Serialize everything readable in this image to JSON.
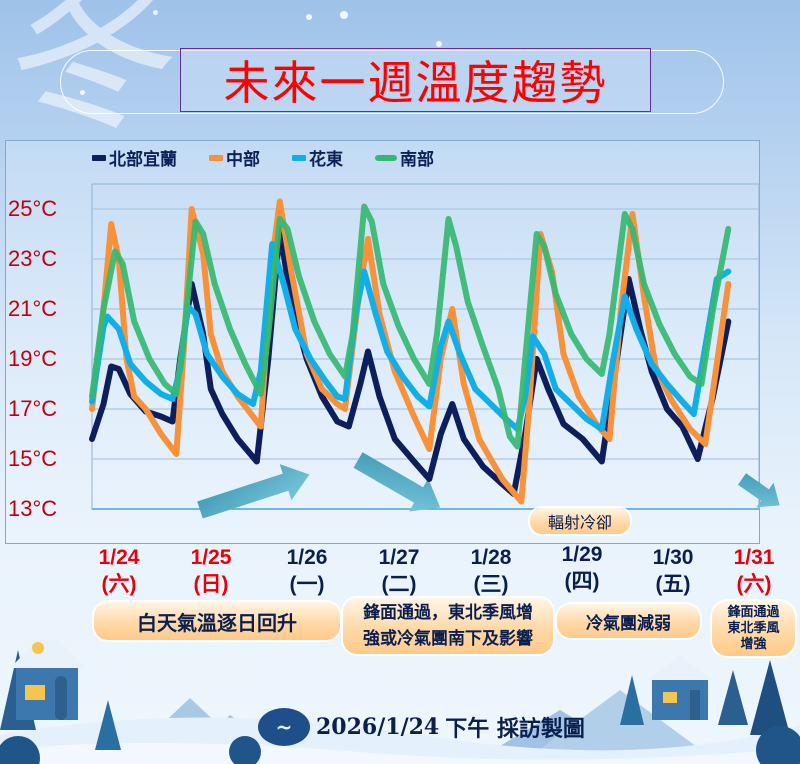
{
  "title": "未來一週溫度趨勢",
  "decorative_glyph": "冬",
  "legend": [
    {
      "label": "北部宜蘭",
      "color": "#0c1f5c"
    },
    {
      "label": "中部",
      "color": "#f7923a"
    },
    {
      "label": "花東",
      "color": "#12aeea"
    },
    {
      "label": "南部",
      "color": "#35b872"
    }
  ],
  "y_ticks": [
    "25°C",
    "23°C",
    "21°C",
    "19°C",
    "17°C",
    "15°C",
    "13°C"
  ],
  "days": [
    {
      "date": "1/24",
      "weekday": "(六)",
      "color": "#e8000b"
    },
    {
      "date": "1/25",
      "weekday": "(日)",
      "color": "#e8000b"
    },
    {
      "date": "1/26",
      "weekday": "(一)",
      "color": "#0b1f4f"
    },
    {
      "date": "1/27",
      "weekday": "(二)",
      "color": "#0b1f4f"
    },
    {
      "date": "1/28",
      "weekday": "(三)",
      "color": "#0b1f4f"
    },
    {
      "date": "1/29",
      "weekday": "(四)",
      "color": "#0b1f4f"
    },
    {
      "date": "1/30",
      "weekday": "(五)",
      "color": "#0b1f4f"
    },
    {
      "date": "1/31",
      "weekday": "(六)",
      "color": "#e8000b"
    }
  ],
  "notes": [
    {
      "text": "白天氣溫逐日回升"
    },
    {
      "text_line1": "鋒面通過，東北季風增",
      "text_line2": "強或冷氣團南下及影響"
    },
    {
      "text": "冷氣團減弱"
    },
    {
      "text_line1": "鋒面通過",
      "text_line2": "東北季風",
      "text_line3": "增強"
    }
  ],
  "annotation": "輻射冷卻",
  "footer": {
    "date": "2026/1/24",
    "text": "下午 採訪製圖"
  },
  "chart_data": {
    "type": "line",
    "title": "未來一週溫度趨勢",
    "xlabel": "",
    "ylabel": "",
    "ylim": [
      13,
      25.5
    ],
    "y_ticks": [
      25,
      23,
      21,
      19,
      17,
      15,
      13
    ],
    "x_unit": "hours since 1/24 00:00",
    "xlim": [
      0,
      174
    ],
    "categories": [
      "1/24 (六)",
      "1/25 (日)",
      "1/26 (一)",
      "1/27 (二)",
      "1/28 (三)",
      "1/29 (四)",
      "1/30 (五)",
      "1/31 (六)"
    ],
    "grid": true,
    "legend_position": "top",
    "series": [
      {
        "name": "北部宜蘭",
        "color": "#0c1f5c",
        "points": [
          [
            0,
            15.8
          ],
          [
            3,
            17.2
          ],
          [
            5,
            18.7
          ],
          [
            7,
            18.6
          ],
          [
            10,
            17.6
          ],
          [
            14,
            16.9
          ],
          [
            18,
            16.7
          ],
          [
            21,
            16.5
          ],
          [
            23,
            19
          ],
          [
            26,
            22.0
          ],
          [
            29,
            20
          ],
          [
            31,
            17.8
          ],
          [
            34,
            16.8
          ],
          [
            38,
            15.8
          ],
          [
            43,
            14.9
          ],
          [
            46,
            19
          ],
          [
            49,
            24.2
          ],
          [
            52,
            21.2
          ],
          [
            56,
            19
          ],
          [
            60,
            17.5
          ],
          [
            64,
            16.5
          ],
          [
            67,
            16.3
          ],
          [
            70,
            18
          ],
          [
            72,
            19.3
          ],
          [
            75,
            17.5
          ],
          [
            79,
            15.8
          ],
          [
            84,
            14.9
          ],
          [
            88,
            14.2
          ],
          [
            91,
            16
          ],
          [
            94,
            17.2
          ],
          [
            97,
            15.8
          ],
          [
            102,
            14.7
          ],
          [
            107,
            14.0
          ],
          [
            110,
            13.6
          ],
          [
            113,
            16
          ],
          [
            116,
            19.0
          ],
          [
            119,
            17.8
          ],
          [
            123,
            16.4
          ],
          [
            128,
            15.8
          ],
          [
            133,
            14.9
          ],
          [
            136,
            18
          ],
          [
            140,
            22.2
          ],
          [
            143,
            20.2
          ],
          [
            146,
            18.5
          ],
          [
            150,
            17.0
          ],
          [
            154,
            16.3
          ],
          [
            158,
            15.0
          ],
          [
            162,
            17.5
          ],
          [
            166,
            20.5
          ]
        ]
      },
      {
        "name": "中部",
        "color": "#f7923a",
        "points": [
          [
            0,
            17.0
          ],
          [
            3,
            21
          ],
          [
            5,
            24.4
          ],
          [
            7,
            23
          ],
          [
            9,
            19
          ],
          [
            11,
            17.5
          ],
          [
            14,
            17.0
          ],
          [
            18,
            16.0
          ],
          [
            22,
            15.2
          ],
          [
            24,
            19.5
          ],
          [
            26,
            25.0
          ],
          [
            29,
            23.2
          ],
          [
            31,
            20
          ],
          [
            34,
            18.5
          ],
          [
            38,
            17.5
          ],
          [
            42,
            16.7
          ],
          [
            44,
            16.3
          ],
          [
            47,
            23
          ],
          [
            49,
            25.3
          ],
          [
            52,
            22.5
          ],
          [
            56,
            19.2
          ],
          [
            60,
            17.8
          ],
          [
            64,
            17.2
          ],
          [
            66,
            17.0
          ],
          [
            70,
            22
          ],
          [
            72,
            23.8
          ],
          [
            75,
            20.8
          ],
          [
            79,
            18.5
          ],
          [
            84,
            16.7
          ],
          [
            88,
            15.4
          ],
          [
            91,
            19
          ],
          [
            94,
            21.0
          ],
          [
            97,
            18
          ],
          [
            101,
            15.8
          ],
          [
            107,
            14.2
          ],
          [
            112,
            13.3
          ],
          [
            114,
            17
          ],
          [
            117,
            24.0
          ],
          [
            120,
            22.5
          ],
          [
            123,
            19.2
          ],
          [
            127,
            17.5
          ],
          [
            132,
            16.3
          ],
          [
            135,
            15.8
          ],
          [
            138,
            21
          ],
          [
            141,
            24.8
          ],
          [
            144,
            21.5
          ],
          [
            147,
            18.7
          ],
          [
            151,
            17.4
          ],
          [
            156,
            16.2
          ],
          [
            160,
            15.6
          ],
          [
            163,
            18.8
          ],
          [
            166,
            22.0
          ]
        ]
      },
      {
        "name": "花東",
        "color": "#12aeea",
        "points": [
          [
            0,
            17.3
          ],
          [
            3,
            20.3
          ],
          [
            4,
            20.7
          ],
          [
            7,
            20.2
          ],
          [
            10,
            18.8
          ],
          [
            14,
            18.1
          ],
          [
            18,
            17.6
          ],
          [
            21,
            17.4
          ],
          [
            23,
            18.6
          ],
          [
            25,
            21.1
          ],
          [
            27,
            20.8
          ],
          [
            30,
            19.2
          ],
          [
            34,
            18.3
          ],
          [
            38,
            17.6
          ],
          [
            42,
            17.2
          ],
          [
            44,
            18.5
          ],
          [
            47,
            23.6
          ],
          [
            50,
            22.0
          ],
          [
            53,
            20.2
          ],
          [
            57,
            19.0
          ],
          [
            61,
            18.1
          ],
          [
            64,
            17.5
          ],
          [
            66,
            17.4
          ],
          [
            69,
            21
          ],
          [
            71,
            22.5
          ],
          [
            74,
            20.8
          ],
          [
            77,
            19.3
          ],
          [
            81,
            18.3
          ],
          [
            85,
            17.5
          ],
          [
            88,
            17.1
          ],
          [
            91,
            19.5
          ],
          [
            93,
            20.5
          ],
          [
            96,
            19.2
          ],
          [
            100,
            17.8
          ],
          [
            104,
            17.2
          ],
          [
            108,
            16.6
          ],
          [
            111,
            16.2
          ],
          [
            113,
            17.5
          ],
          [
            115,
            19.9
          ],
          [
            118,
            19.2
          ],
          [
            121,
            17.8
          ],
          [
            125,
            17.2
          ],
          [
            129,
            16.6
          ],
          [
            133,
            16.2
          ],
          [
            136,
            19
          ],
          [
            139,
            21.5
          ],
          [
            142,
            20.2
          ],
          [
            146,
            18.8
          ],
          [
            150,
            18.0
          ],
          [
            154,
            17.3
          ],
          [
            157,
            16.8
          ],
          [
            160,
            19.5
          ],
          [
            163,
            22.2
          ],
          [
            166,
            22.5
          ]
        ]
      },
      {
        "name": "南部",
        "color": "#35b872",
        "points": [
          [
            0,
            17.5
          ],
          [
            3,
            21
          ],
          [
            6,
            23.3
          ],
          [
            8,
            22.8
          ],
          [
            11,
            20.5
          ],
          [
            15,
            19.0
          ],
          [
            19,
            18.0
          ],
          [
            22,
            17.6
          ],
          [
            24,
            20
          ],
          [
            27,
            24.5
          ],
          [
            29,
            24.0
          ],
          [
            32,
            22.0
          ],
          [
            36,
            20.2
          ],
          [
            40,
            18.8
          ],
          [
            44,
            17.6
          ],
          [
            46,
            20
          ],
          [
            49,
            24.6
          ],
          [
            51,
            24.2
          ],
          [
            54,
            22.3
          ],
          [
            58,
            20.5
          ],
          [
            62,
            19.2
          ],
          [
            66,
            18.3
          ],
          [
            68,
            20
          ],
          [
            71,
            25.1
          ],
          [
            73,
            24.5
          ],
          [
            76,
            22
          ],
          [
            80,
            20.3
          ],
          [
            84,
            19.0
          ],
          [
            88,
            18.0
          ],
          [
            90,
            20
          ],
          [
            93,
            24.6
          ],
          [
            95,
            23.5
          ],
          [
            98,
            21.3
          ],
          [
            102,
            19.5
          ],
          [
            106,
            17.8
          ],
          [
            109,
            15.9
          ],
          [
            111,
            15.5
          ],
          [
            113,
            19
          ],
          [
            116,
            24.0
          ],
          [
            118,
            23.5
          ],
          [
            121,
            21.6
          ],
          [
            125,
            20.0
          ],
          [
            129,
            19.0
          ],
          [
            133,
            18.4
          ],
          [
            135,
            20
          ],
          [
            139,
            24.8
          ],
          [
            141,
            24.2
          ],
          [
            144,
            22.0
          ],
          [
            148,
            20.4
          ],
          [
            152,
            19.2
          ],
          [
            156,
            18.3
          ],
          [
            159,
            18.0
          ],
          [
            162,
            21
          ],
          [
            166,
            24.2
          ]
        ]
      }
    ],
    "annotations": [
      {
        "text": "輻射冷卻",
        "near": "1/29 early morning, 中部 trough"
      },
      {
        "type": "arrow",
        "direction": "up-right",
        "near": "1/25-1/26"
      },
      {
        "type": "arrow",
        "direction": "down-right",
        "near": "1/27"
      },
      {
        "type": "arrow",
        "direction": "down-right",
        "near": "1/31"
      }
    ]
  }
}
